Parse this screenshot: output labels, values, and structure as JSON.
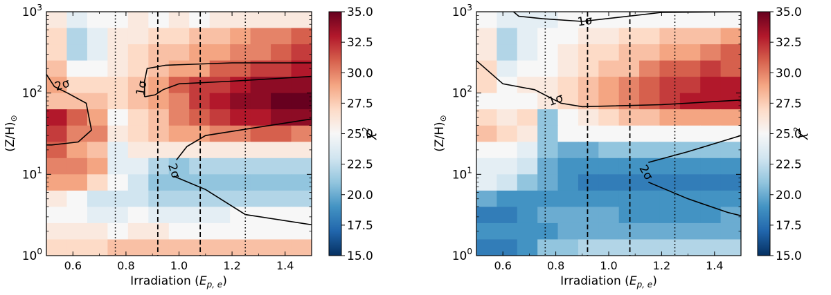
{
  "colorbar": {
    "label": "χ",
    "label_exp": "2",
    "range": [
      15,
      35
    ],
    "ticks": [
      "15.0",
      "17.5",
      "20.0",
      "22.5",
      "25.0",
      "27.5",
      "30.0",
      "32.5",
      "35.0"
    ],
    "colormap": [
      "#053061",
      "#2166ac",
      "#4393c3",
      "#92c5de",
      "#d1e5f0",
      "#f7f7f7",
      "#fddbc7",
      "#f4a582",
      "#d6604d",
      "#b2182b",
      "#67001f"
    ]
  },
  "chart_data": [
    {
      "type": "heatmap",
      "xlabel_prefix": "Irradiation (",
      "xlabel_symbol": "E",
      "xlabel_sub": "p, e",
      "xlabel_suffix": ")",
      "ylabel": "(Z/H)",
      "ylabel_sub": "⊙",
      "xlim": [
        0.5,
        1.5
      ],
      "ylim_log10": [
        0,
        3
      ],
      "y_scale": "log",
      "x_ticks": [
        "0.6",
        "0.8",
        "1.0",
        "1.2",
        "1.4"
      ],
      "y_ticks": [
        {
          "base": "10",
          "exp": "0"
        },
        {
          "base": "10",
          "exp": "1"
        },
        {
          "base": "10",
          "exp": "2"
        },
        {
          "base": "10",
          "exp": "3"
        }
      ],
      "vlines": [
        {
          "x": 0.76,
          "style": "dotted"
        },
        {
          "x": 0.92,
          "style": "dashed"
        },
        {
          "x": 1.08,
          "style": "dashed"
        },
        {
          "x": 1.25,
          "style": "dotted"
        }
      ],
      "chi2_grid": [
        [
          26,
          24,
          25,
          25,
          26,
          25,
          26,
          25,
          26,
          26,
          26,
          26,
          26
        ],
        [
          27,
          22,
          24,
          26,
          26,
          27,
          27,
          28,
          28,
          29,
          30,
          30,
          31
        ],
        [
          27,
          22,
          24,
          26,
          27,
          28,
          28,
          29,
          29,
          30,
          30,
          31,
          32
        ],
        [
          28,
          25,
          25,
          26,
          27,
          28,
          29,
          29,
          31,
          31,
          32,
          32,
          33
        ],
        [
          29,
          27,
          27,
          27,
          28,
          29,
          31,
          32,
          32,
          33,
          34,
          34,
          34
        ],
        [
          28,
          28,
          28,
          27,
          28,
          29,
          30,
          32,
          33,
          34,
          34,
          35,
          35
        ],
        [
          33,
          31,
          29,
          25,
          27,
          28,
          30,
          31,
          32,
          33,
          33,
          34,
          34
        ],
        [
          32,
          30,
          30,
          26,
          27,
          28,
          29,
          29,
          30,
          30,
          31,
          31,
          30
        ],
        [
          31,
          29,
          28,
          24,
          26,
          26,
          26,
          26,
          26,
          26,
          26,
          26,
          26
        ],
        [
          30,
          30,
          29,
          24,
          24,
          22,
          21,
          22,
          22,
          22,
          22,
          22,
          22
        ],
        [
          29,
          29,
          27,
          25,
          23,
          21,
          21,
          21,
          21,
          21,
          21,
          21,
          21
        ],
        [
          26,
          25,
          23,
          23,
          23,
          22,
          22,
          22,
          22,
          22,
          22,
          22,
          22
        ],
        [
          25,
          25,
          24,
          24,
          25,
          24,
          24,
          24,
          24,
          25,
          25,
          25,
          25
        ],
        [
          26,
          26,
          26,
          25,
          26,
          26,
          25,
          25,
          25,
          25,
          25,
          25,
          25
        ],
        [
          27,
          27,
          27,
          28,
          28,
          28,
          28,
          28,
          28,
          28,
          28,
          28,
          28
        ]
      ],
      "contours": [
        {
          "label": "2σ",
          "label_at": [
            0.56,
            125
          ],
          "label_rot": 18,
          "points": [
            [
              0.5,
              170
            ],
            [
              0.53,
              120
            ],
            [
              0.58,
              100
            ],
            [
              0.65,
              75
            ],
            [
              0.67,
              35
            ],
            [
              0.62,
              25
            ],
            [
              0.52,
              23
            ],
            [
              0.5,
              23
            ]
          ]
        },
        {
          "label": "1σ",
          "label_at": [
            0.86,
            115
          ],
          "label_rot": 80,
          "points": [
            [
              0.87,
              90
            ],
            [
              0.87,
              140
            ],
            [
              0.88,
              200
            ],
            [
              0.95,
              220
            ],
            [
              1.2,
              235
            ],
            [
              1.5,
              235
            ]
          ]
        },
        {
          "label": "",
          "label_at": null,
          "label_rot": 0,
          "points": [
            [
              0.87,
              90
            ],
            [
              0.91,
              95
            ],
            [
              0.94,
              110
            ],
            [
              1.0,
              130
            ],
            [
              1.2,
              140
            ],
            [
              1.5,
              160
            ]
          ]
        },
        {
          "label": "2σ",
          "label_at": [
            0.98,
            11
          ],
          "label_rot": -72,
          "points": [
            [
              0.99,
              15
            ],
            [
              1.03,
              22
            ],
            [
              1.1,
              30
            ],
            [
              1.3,
              38
            ],
            [
              1.5,
              48
            ]
          ]
        },
        {
          "label": "",
          "label_at": null,
          "label_rot": 0,
          "points": [
            [
              0.98,
              9.5
            ],
            [
              1.1,
              6.5
            ],
            [
              1.25,
              3.2
            ],
            [
              1.5,
              2.4
            ]
          ]
        }
      ]
    },
    {
      "type": "heatmap",
      "xlabel_prefix": "Irradiation (",
      "xlabel_symbol": "E",
      "xlabel_sub": "p, e",
      "xlabel_suffix": ")",
      "ylabel": "(Z/H)",
      "ylabel_sub": "⊙",
      "xlim": [
        0.5,
        1.5
      ],
      "ylim_log10": [
        0,
        3
      ],
      "y_scale": "log",
      "x_ticks": [
        "0.6",
        "0.8",
        "1.0",
        "1.2",
        "1.4"
      ],
      "y_ticks": [
        {
          "base": "10",
          "exp": "0"
        },
        {
          "base": "10",
          "exp": "1"
        },
        {
          "base": "10",
          "exp": "2"
        },
        {
          "base": "10",
          "exp": "3"
        }
      ],
      "vlines": [
        {
          "x": 0.76,
          "style": "dotted"
        },
        {
          "x": 0.92,
          "style": "dashed"
        },
        {
          "x": 1.08,
          "style": "dashed"
        },
        {
          "x": 1.25,
          "style": "dotted"
        }
      ],
      "chi2_grid": [
        [
          25,
          24,
          24,
          24,
          25,
          25,
          25,
          25,
          25,
          25,
          25,
          25,
          25
        ],
        [
          26,
          22,
          24,
          25,
          25,
          26,
          26,
          27,
          27,
          28,
          28,
          28,
          29
        ],
        [
          26,
          22,
          24,
          25,
          26,
          27,
          27,
          28,
          28,
          29,
          29,
          30,
          31
        ],
        [
          27,
          24,
          25,
          25,
          26,
          27,
          28,
          28,
          30,
          31,
          31,
          32,
          31
        ],
        [
          27,
          25,
          26,
          26,
          27,
          28,
          29,
          30,
          31,
          32,
          32,
          33,
          33
        ],
        [
          25,
          25,
          25,
          26,
          27,
          28,
          29,
          30,
          31,
          32,
          33,
          33,
          33
        ],
        [
          27,
          26,
          27,
          21,
          25,
          26,
          27,
          28,
          28,
          29,
          29,
          29,
          29
        ],
        [
          28,
          27,
          26,
          21,
          25,
          25,
          25,
          25,
          25,
          25,
          25,
          25,
          25
        ],
        [
          25,
          25,
          24,
          21,
          20,
          20,
          21,
          21,
          21,
          21,
          21,
          21,
          21
        ],
        [
          24,
          24,
          23,
          20,
          19,
          19,
          19,
          19,
          19,
          19,
          19,
          19,
          19
        ],
        [
          24,
          23,
          21,
          20,
          19,
          18,
          18,
          18,
          18,
          18,
          18,
          18,
          18
        ],
        [
          20,
          19,
          19,
          19,
          19,
          19,
          19,
          19,
          19,
          19,
          19,
          19,
          19
        ],
        [
          18,
          18,
          19,
          20,
          20,
          20,
          20,
          19,
          19,
          19,
          19,
          19,
          20
        ],
        [
          19,
          19,
          19,
          19,
          20,
          20,
          20,
          20,
          20,
          20,
          20,
          20,
          20
        ],
        [
          18,
          18,
          19,
          21,
          21,
          22,
          22,
          22,
          22,
          22,
          22,
          22,
          22
        ]
      ],
      "contours": [
        {
          "label": "1σ",
          "label_at": [
            0.8,
            82
          ],
          "label_rot": 20,
          "points": [
            [
              0.5,
              250
            ],
            [
              0.6,
              130
            ],
            [
              0.72,
              110
            ],
            [
              0.82,
              75
            ],
            [
              0.9,
              68
            ],
            [
              1.2,
              72
            ],
            [
              1.5,
              82
            ]
          ]
        },
        {
          "label": "1σ",
          "label_at": [
            0.91,
            760
          ],
          "label_rot": 8,
          "points": [
            [
              0.64,
              1000
            ],
            [
              0.66,
              880
            ],
            [
              0.75,
              820
            ],
            [
              0.9,
              760
            ],
            [
              1.2,
              980
            ],
            [
              1.5,
              1000
            ]
          ]
        },
        {
          "label": "2σ",
          "label_at": [
            1.14,
            10.5
          ],
          "label_rot": -60,
          "points": [
            [
              1.15,
              14
            ],
            [
              1.3,
              19
            ],
            [
              1.5,
              30
            ]
          ]
        },
        {
          "label": "",
          "label_at": null,
          "label_rot": 0,
          "points": [
            [
              1.15,
              8
            ],
            [
              1.3,
              5
            ],
            [
              1.45,
              3.4
            ],
            [
              1.5,
              3.1
            ]
          ]
        }
      ]
    }
  ]
}
